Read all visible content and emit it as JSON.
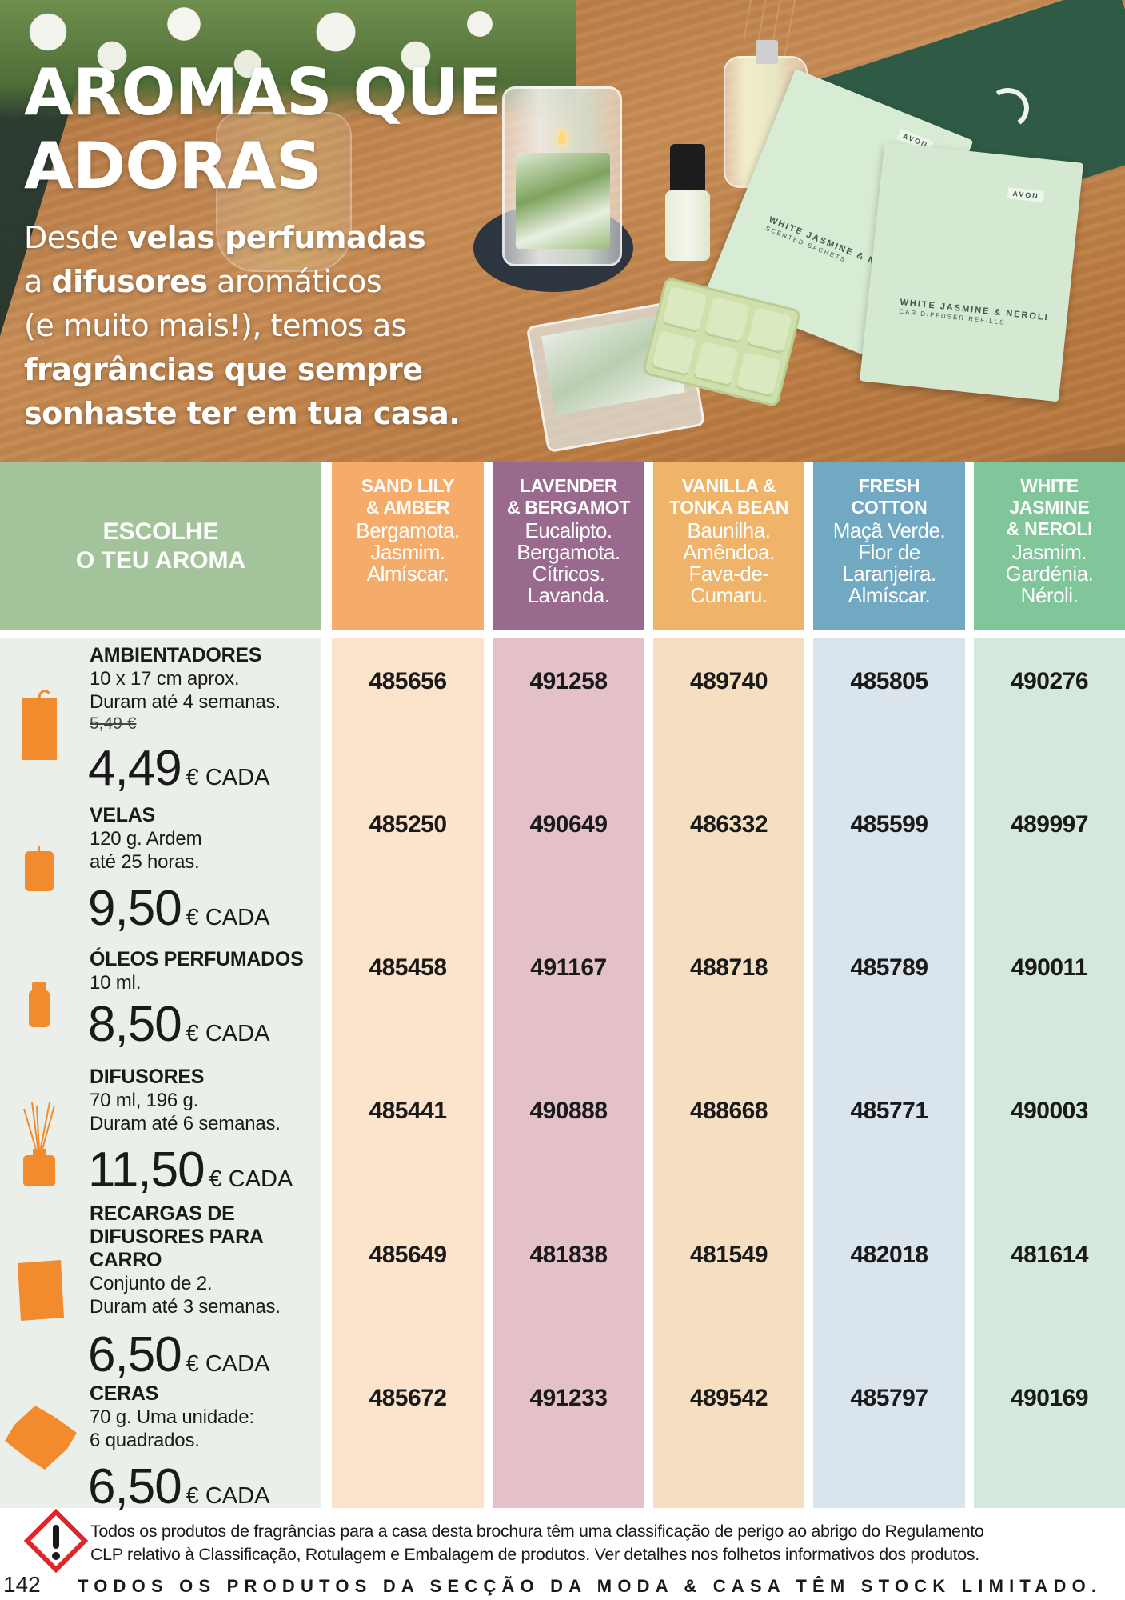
{
  "hero": {
    "title_line1": "AROMAS QUE",
    "title_line2": "ADORAS",
    "subtitle": [
      {
        "text": "Desde ",
        "bold": false
      },
      {
        "text": "velas perfumadas",
        "bold": true
      },
      {
        "text": "\na ",
        "bold": false
      },
      {
        "text": "difusores",
        "bold": true
      },
      {
        "text": " aromáticos\n(e muito mais!), temos as\n",
        "bold": false
      },
      {
        "text": "fragrâncias que sempre\nsonhaste ter em tua casa.",
        "bold": true
      }
    ],
    "photo_labels": {
      "brand": "AVON",
      "sachet_scented": "WHITE JASMINE & NEROLI",
      "sachet_scented_sub": "SCENTED SACHETS",
      "sachet_car": "WHITE JASMINE & NEROLI",
      "sachet_car_sub": "CAR DIFFUSER REFILLS"
    }
  },
  "table": {
    "choose_line1": "ESCOLHE",
    "choose_line2": "O TEU AROMA",
    "columns": [
      {
        "name_line1": "SAND LILY",
        "name_line2": "& AMBER",
        "name_line3": "",
        "notes": [
          "Bergamota.",
          "Jasmim.",
          "Almíscar."
        ],
        "header_color": "#f5ab6a",
        "body_color": "#fce3cc",
        "codes": [
          "485656",
          "485250",
          "485458",
          "485441",
          "485649",
          "485672"
        ]
      },
      {
        "name_line1": "LAVENDER",
        "name_line2": "& BERGAMOT",
        "name_line3": "",
        "notes": [
          "Eucalipto.",
          "Bergamota.",
          "Cítricos.",
          "Lavanda."
        ],
        "header_color": "#9a6a8e",
        "body_color": "#e4c1c9",
        "codes": [
          "491258",
          "490649",
          "491167",
          "490888",
          "481838",
          "491233"
        ]
      },
      {
        "name_line1": "VANILLA &",
        "name_line2": "TONKA BEAN",
        "name_line3": "",
        "notes": [
          "Baunilha.",
          "Amêndoa.",
          "Fava-de-",
          "Cumaru."
        ],
        "header_color": "#efb469",
        "body_color": "#f6dfc0",
        "codes": [
          "489740",
          "486332",
          "488718",
          "488668",
          "481549",
          "489542"
        ]
      },
      {
        "name_line1": "FRESH",
        "name_line2": "COTTON",
        "name_line3": "",
        "notes": [
          "Maçã Verde.",
          "Flor de",
          "Laranjeira.",
          "Almíscar."
        ],
        "header_color": "#72a9c2",
        "body_color": "#dae4ec",
        "codes": [
          "485805",
          "485599",
          "485789",
          "485771",
          "482018",
          "485797"
        ]
      },
      {
        "name_line1": "WHITE",
        "name_line2": "JASMINE",
        "name_line3": "& NEROLI",
        "notes": [
          "Jasmim.",
          "Gardénia.",
          "Néroli."
        ],
        "header_color": "#80c69a",
        "body_color": "#d4e9db",
        "codes": [
          "490276",
          "489997",
          "490011",
          "490003",
          "481614",
          "490169"
        ]
      }
    ],
    "products": [
      {
        "icon": "sachet-icon",
        "name": [
          "AMBIENTADORES"
        ],
        "desc": [
          "10 x 17 cm aprox.",
          "Duram até 4 semanas."
        ],
        "old_price": "5,49 €",
        "price": "4,49",
        "unit": "€ CADA"
      },
      {
        "icon": "candle-icon",
        "name": [
          "VELAS"
        ],
        "desc": [
          "120 g. Ardem",
          "até 25 horas."
        ],
        "old_price": "",
        "price": "9,50",
        "unit": "€ CADA"
      },
      {
        "icon": "oil-bottle-icon",
        "name": [
          "ÓLEOS PERFUMADOS"
        ],
        "desc": [
          "10 ml."
        ],
        "old_price": "",
        "price": "8,50",
        "unit": "€ CADA"
      },
      {
        "icon": "reed-diffuser-icon",
        "name": [
          "DIFUSORES"
        ],
        "desc": [
          "70 ml, 196 g.",
          "Duram até 6 semanas."
        ],
        "old_price": "",
        "price": "11,50",
        "unit": "€  CADA"
      },
      {
        "icon": "car-refill-icon",
        "name": [
          "RECARGAS DE",
          "DIFUSORES PARA",
          "CARRO"
        ],
        "desc": [
          "Conjunto de 2.",
          "Duram até 3 semanas."
        ],
        "old_price": "",
        "price": "6,50",
        "unit": "€  CADA"
      },
      {
        "icon": "wax-melt-icon",
        "name": [
          "CERAS"
        ],
        "desc": [
          "70 g. Uma unidade:",
          "6 quadrados."
        ],
        "old_price": "",
        "price": "6,50",
        "unit": "€  CADA"
      }
    ],
    "left_bg": "#ebefea",
    "choose_bg": "#a3c49a",
    "icon_color": "#f28a2e"
  },
  "footer": {
    "warning_icon": "hazard-exclamation-icon",
    "warning_color": "#e0252b",
    "warning_line1": "Todos os produtos de fragrâncias para a casa desta brochura têm uma classificação de perigo ao abrigo do Regulamento",
    "warning_line2": "CLP relativo à Classificação, Rotulagem e Embalagem de produtos. Ver detalhes nos folhetos informativos dos produtos.",
    "page_number": "142",
    "stock_notice": "TODOS OS PRODUTOS DA SECÇÃO DA MODA & CASA TÊM STOCK LIMITADO."
  }
}
